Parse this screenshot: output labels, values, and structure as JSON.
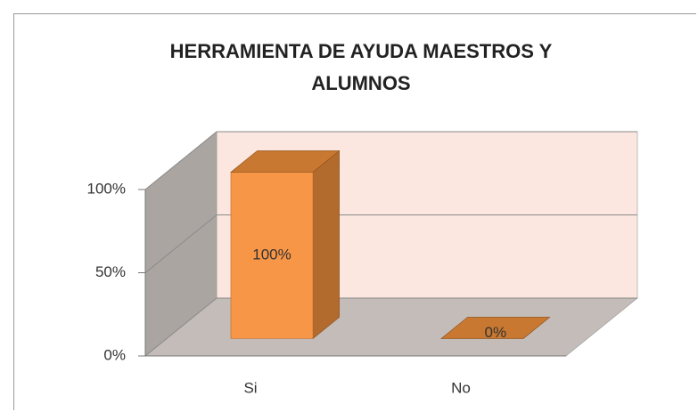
{
  "chart_data": {
    "type": "bar3d",
    "title": "HERRAMIENTA DE AYUDA MAESTROS Y ALUMNOS",
    "categories": [
      "Si",
      "No"
    ],
    "values": [
      100,
      0
    ],
    "value_labels": [
      "100%",
      "0%"
    ],
    "color": "#f79646",
    "ylim": [
      0,
      100
    ],
    "yticks": [
      {
        "value": 0,
        "label": "0%"
      },
      {
        "value": 50,
        "label": "50%"
      },
      {
        "value": 100,
        "label": "100%"
      }
    ],
    "grid": true
  }
}
